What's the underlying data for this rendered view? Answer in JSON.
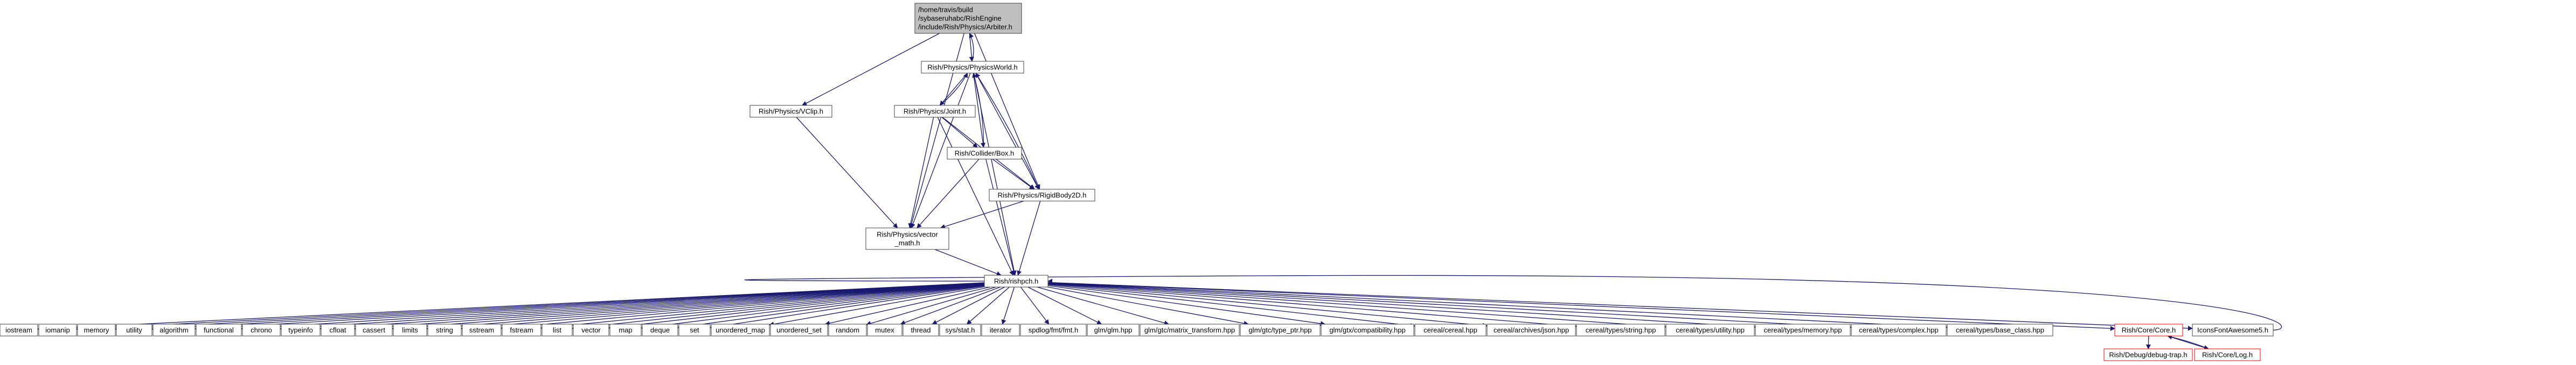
{
  "diagram": {
    "kind": "include-dependency-graph",
    "colors": {
      "edge": "#191970",
      "main_fill": "#bfbfbf",
      "node_fill": "#ffffff",
      "node_border": "#404040",
      "truncated_border": "#ff0000"
    },
    "nodes": [
      {
        "id": "arbiter",
        "lines": [
          "/home/travis/build",
          "/sybaseruhabc/RishEngine",
          "/include/Rish/Physics/Arbiter.h"
        ],
        "style": "main"
      },
      {
        "id": "physicsworld",
        "lines": [
          "Rish/Physics/PhysicsWorld.h"
        ],
        "style": "plain"
      },
      {
        "id": "vclip",
        "lines": [
          "Rish/Physics/VClip.h"
        ],
        "style": "plain"
      },
      {
        "id": "joint",
        "lines": [
          "Rish/Physics/Joint.h"
        ],
        "style": "plain"
      },
      {
        "id": "colliderbox",
        "lines": [
          "Rish/Collider/Box.h"
        ],
        "style": "plain"
      },
      {
        "id": "rigidbody2d",
        "lines": [
          "Rish/Physics/RigidBody2D.h"
        ],
        "style": "plain"
      },
      {
        "id": "vectormath",
        "lines": [
          "Rish/Physics/vector",
          "_math.h"
        ],
        "style": "plain"
      },
      {
        "id": "rishpch",
        "lines": [
          "Rish/rishpch.h"
        ],
        "style": "plain"
      },
      {
        "id": "iostream",
        "lines": [
          "iostream"
        ],
        "style": "plain"
      },
      {
        "id": "iomanip",
        "lines": [
          "iomanip"
        ],
        "style": "plain"
      },
      {
        "id": "memory",
        "lines": [
          "memory"
        ],
        "style": "plain"
      },
      {
        "id": "utility",
        "lines": [
          "utility"
        ],
        "style": "plain"
      },
      {
        "id": "algorithm",
        "lines": [
          "algorithm"
        ],
        "style": "plain"
      },
      {
        "id": "functional",
        "lines": [
          "functional"
        ],
        "style": "plain"
      },
      {
        "id": "chrono",
        "lines": [
          "chrono"
        ],
        "style": "plain"
      },
      {
        "id": "typeinfo",
        "lines": [
          "typeinfo"
        ],
        "style": "plain"
      },
      {
        "id": "cfloat",
        "lines": [
          "cfloat"
        ],
        "style": "plain"
      },
      {
        "id": "cassert",
        "lines": [
          "cassert"
        ],
        "style": "plain"
      },
      {
        "id": "limits",
        "lines": [
          "limits"
        ],
        "style": "plain"
      },
      {
        "id": "string",
        "lines": [
          "string"
        ],
        "style": "plain"
      },
      {
        "id": "sstream",
        "lines": [
          "sstream"
        ],
        "style": "plain"
      },
      {
        "id": "fstream",
        "lines": [
          "fstream"
        ],
        "style": "plain"
      },
      {
        "id": "list",
        "lines": [
          "list"
        ],
        "style": "plain"
      },
      {
        "id": "vector",
        "lines": [
          "vector"
        ],
        "style": "plain"
      },
      {
        "id": "map",
        "lines": [
          "map"
        ],
        "style": "plain"
      },
      {
        "id": "deque",
        "lines": [
          "deque"
        ],
        "style": "plain"
      },
      {
        "id": "set",
        "lines": [
          "set"
        ],
        "style": "plain"
      },
      {
        "id": "unordered_map",
        "lines": [
          "unordered_map"
        ],
        "style": "plain"
      },
      {
        "id": "unordered_set",
        "lines": [
          "unordered_set"
        ],
        "style": "plain"
      },
      {
        "id": "random",
        "lines": [
          "random"
        ],
        "style": "plain"
      },
      {
        "id": "mutex",
        "lines": [
          "mutex"
        ],
        "style": "plain"
      },
      {
        "id": "thread",
        "lines": [
          "thread"
        ],
        "style": "plain"
      },
      {
        "id": "sysstat",
        "lines": [
          "sys/stat.h"
        ],
        "style": "plain"
      },
      {
        "id": "iterator",
        "lines": [
          "iterator"
        ],
        "style": "plain"
      },
      {
        "id": "spdlog",
        "lines": [
          "spdlog/fmt/fmt.h"
        ],
        "style": "plain"
      },
      {
        "id": "glm",
        "lines": [
          "glm/glm.hpp"
        ],
        "style": "plain"
      },
      {
        "id": "glm_mt",
        "lines": [
          "glm/gtc/matrix_transform.hpp"
        ],
        "style": "plain"
      },
      {
        "id": "glm_tp",
        "lines": [
          "glm/gtc/type_ptr.hpp"
        ],
        "style": "plain"
      },
      {
        "id": "glm_compat",
        "lines": [
          "glm/gtx/compatibility.hpp"
        ],
        "style": "plain"
      },
      {
        "id": "cereal",
        "lines": [
          "cereal/cereal.hpp"
        ],
        "style": "plain"
      },
      {
        "id": "cereal_json",
        "lines": [
          "cereal/archives/json.hpp"
        ],
        "style": "plain"
      },
      {
        "id": "cereal_string",
        "lines": [
          "cereal/types/string.hpp"
        ],
        "style": "plain"
      },
      {
        "id": "cereal_utility",
        "lines": [
          "cereal/types/utility.hpp"
        ],
        "style": "plain"
      },
      {
        "id": "cereal_memory",
        "lines": [
          "cereal/types/memory.hpp"
        ],
        "style": "plain"
      },
      {
        "id": "cereal_complex",
        "lines": [
          "cereal/types/complex.hpp"
        ],
        "style": "plain"
      },
      {
        "id": "cereal_base",
        "lines": [
          "cereal/types/base_class.hpp"
        ],
        "style": "plain"
      },
      {
        "id": "corecore",
        "lines": [
          "Rish/Core/Core.h"
        ],
        "style": "red"
      },
      {
        "id": "iconsfont",
        "lines": [
          "IconsFontAwesome5.h"
        ],
        "style": "plain"
      },
      {
        "id": "debugtrap",
        "lines": [
          "Rish/Debug/debug-trap.h"
        ],
        "style": "red"
      },
      {
        "id": "corelog",
        "lines": [
          "Rish/Core/Log.h"
        ],
        "style": "red"
      }
    ],
    "edges": [
      [
        "arbiter",
        "physicsworld"
      ],
      [
        "arbiter",
        "vclip"
      ],
      [
        "arbiter",
        "vectormath"
      ],
      [
        "arbiter",
        "rigidbody2d"
      ],
      [
        "physicsworld",
        "arbiter"
      ],
      [
        "physicsworld",
        "joint"
      ],
      [
        "physicsworld",
        "colliderbox"
      ],
      [
        "physicsworld",
        "rigidbody2d"
      ],
      [
        "physicsworld",
        "vectormath"
      ],
      [
        "physicsworld",
        "rishpch"
      ],
      [
        "joint",
        "physicsworld"
      ],
      [
        "joint",
        "colliderbox"
      ],
      [
        "joint",
        "rigidbody2d"
      ],
      [
        "joint",
        "vectormath"
      ],
      [
        "joint",
        "rishpch"
      ],
      [
        "colliderbox",
        "physicsworld"
      ],
      [
        "colliderbox",
        "rigidbody2d"
      ],
      [
        "colliderbox",
        "vectormath"
      ],
      [
        "colliderbox",
        "rishpch"
      ],
      [
        "rigidbody2d",
        "physicsworld"
      ],
      [
        "rigidbody2d",
        "vectormath"
      ],
      [
        "rigidbody2d",
        "rishpch"
      ],
      [
        "vclip",
        "vectormath"
      ],
      [
        "vectormath",
        "rishpch"
      ],
      [
        "rishpch",
        "iostream"
      ],
      [
        "rishpch",
        "iomanip"
      ],
      [
        "rishpch",
        "memory"
      ],
      [
        "rishpch",
        "utility"
      ],
      [
        "rishpch",
        "algorithm"
      ],
      [
        "rishpch",
        "functional"
      ],
      [
        "rishpch",
        "chrono"
      ],
      [
        "rishpch",
        "typeinfo"
      ],
      [
        "rishpch",
        "cfloat"
      ],
      [
        "rishpch",
        "cassert"
      ],
      [
        "rishpch",
        "limits"
      ],
      [
        "rishpch",
        "string"
      ],
      [
        "rishpch",
        "sstream"
      ],
      [
        "rishpch",
        "fstream"
      ],
      [
        "rishpch",
        "list"
      ],
      [
        "rishpch",
        "vector"
      ],
      [
        "rishpch",
        "map"
      ],
      [
        "rishpch",
        "deque"
      ],
      [
        "rishpch",
        "set"
      ],
      [
        "rishpch",
        "unordered_map"
      ],
      [
        "rishpch",
        "unordered_set"
      ],
      [
        "rishpch",
        "random"
      ],
      [
        "rishpch",
        "mutex"
      ],
      [
        "rishpch",
        "thread"
      ],
      [
        "rishpch",
        "sysstat"
      ],
      [
        "rishpch",
        "iterator"
      ],
      [
        "rishpch",
        "spdlog"
      ],
      [
        "rishpch",
        "glm"
      ],
      [
        "rishpch",
        "glm_mt"
      ],
      [
        "rishpch",
        "glm_tp"
      ],
      [
        "rishpch",
        "glm_compat"
      ],
      [
        "rishpch",
        "cereal"
      ],
      [
        "rishpch",
        "cereal_json"
      ],
      [
        "rishpch",
        "cereal_string"
      ],
      [
        "rishpch",
        "cereal_utility"
      ],
      [
        "rishpch",
        "cereal_memory"
      ],
      [
        "rishpch",
        "cereal_complex"
      ],
      [
        "rishpch",
        "cereal_base"
      ],
      [
        "rishpch",
        "corecore"
      ],
      [
        "rishpch",
        "iconsfont"
      ],
      [
        "corecore",
        "debugtrap"
      ],
      [
        "corecore",
        "corelog"
      ],
      [
        "corelog",
        "corecore"
      ],
      [
        "iconsfont",
        "rishpch"
      ]
    ]
  }
}
